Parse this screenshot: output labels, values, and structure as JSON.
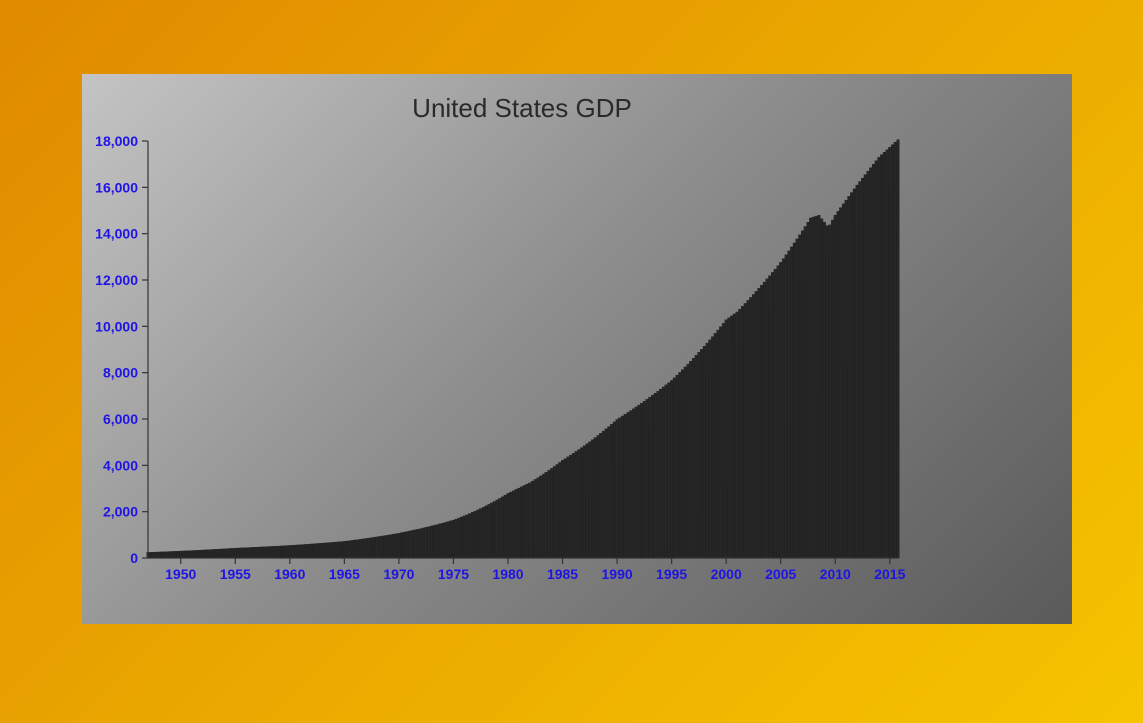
{
  "chart_data": {
    "type": "bar",
    "title": "United States GDP",
    "xlabel": "",
    "ylabel": "",
    "x_range": [
      1947,
      2015.75
    ],
    "ylim": [
      0,
      18000
    ],
    "y_ticks": [
      0,
      2000,
      4000,
      6000,
      8000,
      10000,
      12000,
      14000,
      16000,
      18000
    ],
    "y_tick_labels": [
      "0",
      "2,000",
      "4,000",
      "6,000",
      "8,000",
      "10,000",
      "12,000",
      "14,000",
      "16,000",
      "18,000"
    ],
    "x_ticks": [
      1950,
      1955,
      1960,
      1965,
      1970,
      1975,
      1980,
      1985,
      1990,
      1995,
      2000,
      2005,
      2010,
      2015
    ],
    "x_tick_labels": [
      "1950",
      "1955",
      "1960",
      "1965",
      "1970",
      "1975",
      "1980",
      "1985",
      "1990",
      "1995",
      "2000",
      "2005",
      "2010",
      "2015"
    ],
    "bar_frequency": "quarterly",
    "series_anchor_points": {
      "x": [
        1947,
        1950,
        1955,
        1960,
        1965,
        1970,
        1975,
        1980,
        1982,
        1985,
        1990,
        1995,
        2000,
        2001,
        2005,
        2007.75,
        2008.5,
        2009.25,
        2009.5,
        2010,
        2012,
        2014,
        2015.75
      ],
      "values": [
        243,
        300,
        426,
        543,
        719,
        1073,
        1637,
        2789,
        3250,
        4217,
        5980,
        7664,
        10285,
        10620,
        12761,
        14680,
        14800,
        14350,
        14380,
        14800,
        16100,
        17300,
        18060
      ]
    },
    "grid": false,
    "legend": "none"
  }
}
